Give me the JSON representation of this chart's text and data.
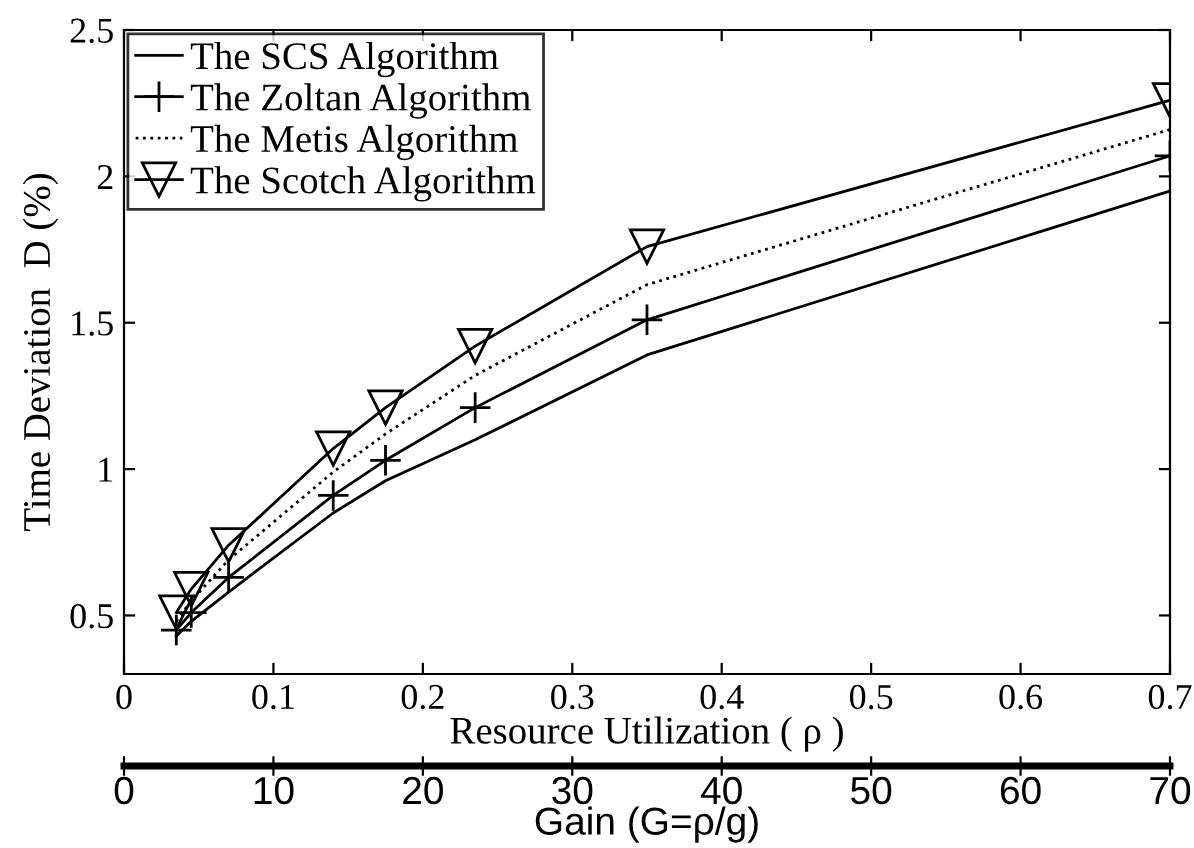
{
  "chart_data": {
    "type": "line",
    "xlabel": "Resource Utilization ( ρ )",
    "ylabel": "Time Deviation  D (%)",
    "x2label": "Gain (G=ρ/g)",
    "x": [
      0.035,
      0.045,
      0.07,
      0.14,
      0.175,
      0.235,
      0.35,
      0.7
    ],
    "series": [
      {
        "name": "The SCS Algorithm",
        "color": "#000000",
        "marker": "none",
        "line_style": "solid",
        "values": [
          0.43,
          0.48,
          0.58,
          0.85,
          0.96,
          1.1,
          1.39,
          1.95
        ]
      },
      {
        "name": "The Zoltan Algorithm",
        "color": "#000000",
        "marker": "cross",
        "line_style": "solid",
        "values": [
          0.45,
          0.51,
          0.63,
          0.91,
          1.03,
          1.21,
          1.51,
          2.07
        ]
      },
      {
        "name": "The Metis Algorithm",
        "color": "#000000",
        "marker": "none",
        "line_style": "dotted",
        "values": [
          0.48,
          0.55,
          0.69,
          0.99,
          1.12,
          1.32,
          1.63,
          2.16
        ]
      },
      {
        "name": "The Scotch Algorithm",
        "color": "#000000",
        "marker": "triangle",
        "line_style": "solid",
        "values": [
          0.51,
          0.59,
          0.74,
          1.07,
          1.21,
          1.42,
          1.76,
          2.26
        ]
      }
    ],
    "xlim": [
      0,
      0.7
    ],
    "xticks": [
      0,
      0.1,
      0.2,
      0.3,
      0.4,
      0.5,
      0.6,
      0.7
    ],
    "ylim": [
      0.3,
      2.5
    ],
    "yticks": [
      0.5,
      1,
      1.5,
      2,
      2.5
    ],
    "x2lim": [
      0,
      70
    ],
    "x2ticks": [
      0,
      10,
      20,
      30,
      40,
      50,
      60,
      70
    ],
    "legend": "top left",
    "grid": false
  }
}
